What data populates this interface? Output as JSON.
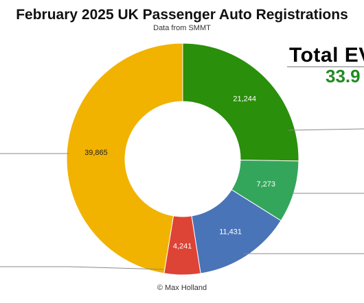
{
  "chart_data": {
    "type": "pie",
    "title": "February 2025 UK Passenger Auto Registrations",
    "subtitle": "Data from SMMT",
    "donut": true,
    "categories": [
      "",
      "",
      "",
      "",
      ""
    ],
    "values": [
      21244,
      7273,
      11431,
      4241,
      39865
    ],
    "value_labels": [
      "21,244",
      "7,273",
      "11,431",
      "4,241",
      "39,865"
    ],
    "colors": [
      "#2a8f0a",
      "#33a65b",
      "#4a74b8",
      "#dd4436",
      "#f2b200"
    ],
    "label_colors": [
      "#ffffff",
      "#ffffff",
      "#ffffff",
      "#ffffff",
      "#222222"
    ],
    "legend": "none (leader lines lead off-image)"
  },
  "overlay": {
    "title": "Total EV",
    "value": "33.9"
  },
  "credit": "© Max Holland"
}
